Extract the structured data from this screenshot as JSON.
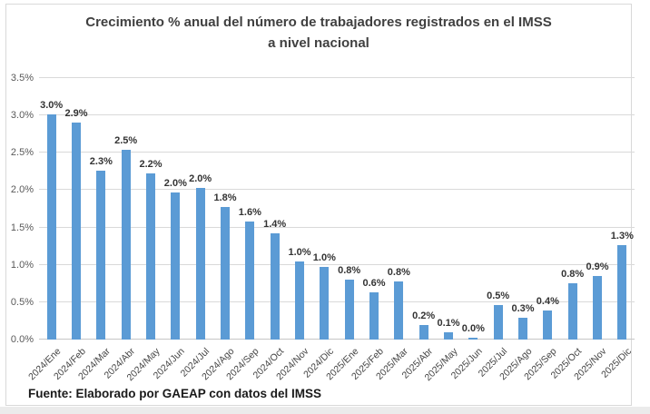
{
  "title": {
    "line1": "Crecimiento % anual del número de trabajadores registrados en el IMSS",
    "line2": "a nivel nacional"
  },
  "footer": {
    "source": "Fuente: Elaborado por GAEAP con datos del IMSS"
  },
  "colors": {
    "bar": "#5b9bd5",
    "gridline": "#d9d9d9",
    "axis_line": "#c6c6c6",
    "title_text": "#404040",
    "tick_text": "#595959",
    "data_label_text": "#333333"
  },
  "chart_data": {
    "type": "bar",
    "title": "Crecimiento % anual del número de trabajadores registrados en el IMSS a nivel nacional",
    "xlabel": "",
    "ylabel": "",
    "ylim": [
      0,
      3.5
    ],
    "grid": true,
    "legend": false,
    "yticks": [
      "0.0%",
      "0.5%",
      "1.0%",
      "1.5%",
      "2.0%",
      "2.5%",
      "3.0%",
      "3.5%"
    ],
    "ytick_values": [
      0,
      0.5,
      1.0,
      1.5,
      2.0,
      2.5,
      3.0,
      3.5
    ],
    "categories": [
      "2024/Ene",
      "2024/Feb",
      "2024/Mar",
      "2024/Abr",
      "2024/May",
      "2024/Jun",
      "2024/Jul",
      "2024/Ago",
      "2024/Sep",
      "2024/Oct",
      "2024/Nov",
      "2024/Dic",
      "2025/Ene",
      "2025/Feb",
      "2025/Mar",
      "2025/Abr",
      "2025/May",
      "2025/Jun",
      "2025/Jul",
      "2025/Ago",
      "2025/Sep",
      "2025/Oct",
      "2025/Nov",
      "2025/Dic"
    ],
    "values": [
      3.0,
      2.9,
      2.3,
      2.5,
      2.2,
      2.0,
      2.0,
      1.8,
      1.6,
      1.4,
      1.0,
      1.0,
      0.8,
      0.6,
      0.8,
      0.2,
      0.1,
      0.0,
      0.5,
      0.3,
      0.4,
      0.8,
      0.9,
      1.3
    ],
    "bar_heights": [
      3.02,
      2.91,
      2.26,
      2.54,
      2.22,
      1.97,
      2.03,
      1.78,
      1.58,
      1.42,
      1.04,
      0.97,
      0.8,
      0.63,
      0.78,
      0.2,
      0.1,
      0.02,
      0.46,
      0.29,
      0.39,
      0.75,
      0.85,
      1.27
    ],
    "data_labels": [
      "3.0%",
      "2.9%",
      "2.3%",
      "2.5%",
      "2.2%",
      "2.0%",
      "2.0%",
      "1.8%",
      "1.6%",
      "1.4%",
      "1.0%",
      "1.0%",
      "0.8%",
      "0.6%",
      "0.8%",
      "0.2%",
      "0.1%",
      "0.0%",
      "0.5%",
      "0.3%",
      "0.4%",
      "0.8%",
      "0.9%",
      "1.3%"
    ]
  }
}
